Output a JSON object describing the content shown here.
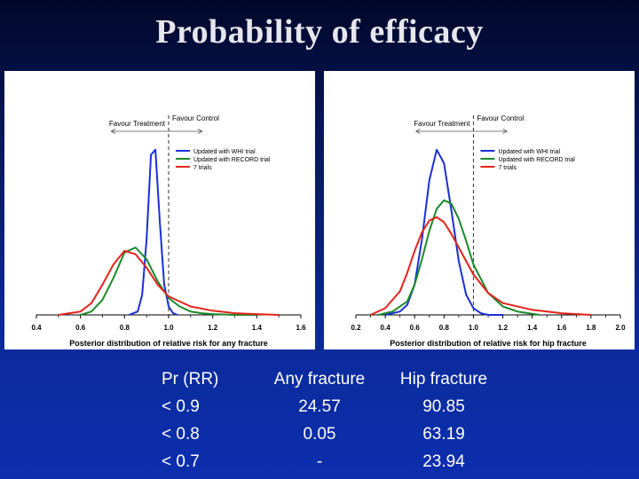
{
  "title": "Probability of efficacy",
  "colors": {
    "whi": "#1a2fd6",
    "record": "#1b8a2a",
    "seven": "#e2231a",
    "axis": "#000000"
  },
  "chart_data": [
    {
      "type": "line",
      "annotation_left": "Favour Treatment",
      "annotation_right": "Favour Control",
      "reference_x": 1.0,
      "xlabel": "Posterior distribution of relative risk for any fracture",
      "xlim": [
        0.4,
        1.6
      ],
      "xticks": [
        "0.4",
        "0.6",
        "0.8",
        "1.0",
        "1.2",
        "1.4",
        "1.6"
      ],
      "legend": "top-right",
      "series": [
        {
          "name": "Updated with WHI trial",
          "color_key": "whi",
          "x": [
            0.82,
            0.86,
            0.88,
            0.9,
            0.92,
            0.94,
            0.96,
            0.98,
            1.0,
            1.02,
            1.04
          ],
          "y": [
            0.0,
            0.02,
            0.12,
            0.45,
            0.95,
            0.98,
            0.55,
            0.18,
            0.05,
            0.01,
            0.0
          ]
        },
        {
          "name": "Updated with RECORD trial",
          "color_key": "record",
          "x": [
            0.6,
            0.65,
            0.7,
            0.75,
            0.8,
            0.85,
            0.9,
            0.95,
            1.0,
            1.05,
            1.1,
            1.15,
            1.2,
            1.3,
            1.4
          ],
          "y": [
            0.0,
            0.02,
            0.09,
            0.22,
            0.37,
            0.4,
            0.33,
            0.2,
            0.1,
            0.05,
            0.02,
            0.01,
            0.005,
            0.0,
            0.0
          ]
        },
        {
          "name": "7 trials",
          "color_key": "seven",
          "x": [
            0.5,
            0.6,
            0.65,
            0.7,
            0.75,
            0.8,
            0.85,
            0.9,
            0.95,
            1.0,
            1.1,
            1.2,
            1.3,
            1.4,
            1.5
          ],
          "y": [
            0.0,
            0.02,
            0.07,
            0.18,
            0.3,
            0.38,
            0.36,
            0.28,
            0.18,
            0.11,
            0.05,
            0.025,
            0.01,
            0.005,
            0.0
          ]
        }
      ]
    },
    {
      "type": "line",
      "annotation_left": "Favour Treatment",
      "annotation_right": "Favour Control",
      "reference_x": 1.0,
      "xlabel": "Posterior distribution of relative risk for hip fracture",
      "xlim": [
        0.2,
        2.0
      ],
      "xticks": [
        "0.2",
        "0.4",
        "0.6",
        "0.8",
        "1.0",
        "1.2",
        "1.4",
        "1.6",
        "1.8",
        "2.0"
      ],
      "legend": "top-right",
      "series": [
        {
          "name": "Updated with WHI trial",
          "color_key": "whi",
          "x": [
            0.4,
            0.5,
            0.55,
            0.6,
            0.65,
            0.7,
            0.75,
            0.8,
            0.85,
            0.9,
            0.95,
            1.0,
            1.05,
            1.1,
            1.2
          ],
          "y": [
            0.0,
            0.02,
            0.06,
            0.18,
            0.45,
            0.8,
            0.98,
            0.9,
            0.62,
            0.32,
            0.12,
            0.04,
            0.01,
            0.0,
            0.0
          ]
        },
        {
          "name": "Updated with RECORD trial",
          "color_key": "record",
          "x": [
            0.35,
            0.45,
            0.55,
            0.6,
            0.65,
            0.7,
            0.75,
            0.8,
            0.85,
            0.9,
            0.95,
            1.0,
            1.1,
            1.2,
            1.3,
            1.45
          ],
          "y": [
            0.0,
            0.02,
            0.08,
            0.18,
            0.33,
            0.5,
            0.63,
            0.68,
            0.66,
            0.57,
            0.44,
            0.3,
            0.13,
            0.05,
            0.02,
            0.0
          ]
        },
        {
          "name": "7 trials",
          "color_key": "seven",
          "x": [
            0.3,
            0.4,
            0.5,
            0.55,
            0.6,
            0.65,
            0.7,
            0.75,
            0.8,
            0.85,
            0.9,
            1.0,
            1.1,
            1.2,
            1.4,
            1.6,
            1.8
          ],
          "y": [
            0.0,
            0.04,
            0.14,
            0.25,
            0.38,
            0.49,
            0.56,
            0.58,
            0.55,
            0.48,
            0.4,
            0.24,
            0.13,
            0.07,
            0.03,
            0.01,
            0.0
          ]
        }
      ]
    }
  ],
  "table": {
    "headers": [
      "Pr (RR)",
      "Any fracture",
      "Hip fracture"
    ],
    "rows": [
      [
        "< 0.9",
        "24.57",
        "90.85"
      ],
      [
        "< 0.8",
        "0.05",
        "63.19"
      ],
      [
        "< 0.7",
        "-",
        "23.94"
      ]
    ]
  }
}
